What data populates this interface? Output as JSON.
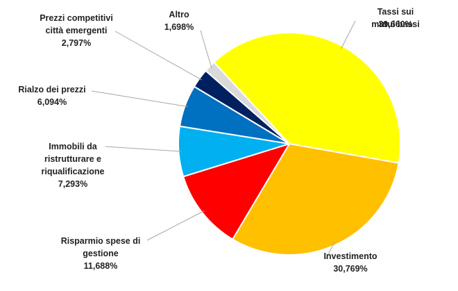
{
  "chart_data": {
    "type": "pie",
    "categories": [
      "Tassi sui mutui bassi",
      "Investimento",
      "Risparmio spese di\ngestione",
      "Immobili da\nristrutturare e\nriqualificazione",
      "Rialzo dei prezzi",
      "Prezzi competitivi\ncittà emergenti",
      "Altro"
    ],
    "values": [
      39.66,
      30.769,
      11.688,
      7.293,
      6.094,
      2.797,
      1.698
    ],
    "value_labels": [
      "39,660%",
      "30,769%",
      "11,688%",
      "7,293%",
      "6,094%",
      "2,797%",
      "1,698%"
    ],
    "colors": [
      "#FFFF00",
      "#FFC000",
      "#FF0000",
      "#00B0F0",
      "#0070C0",
      "#002060",
      "#D9D9D9"
    ]
  }
}
